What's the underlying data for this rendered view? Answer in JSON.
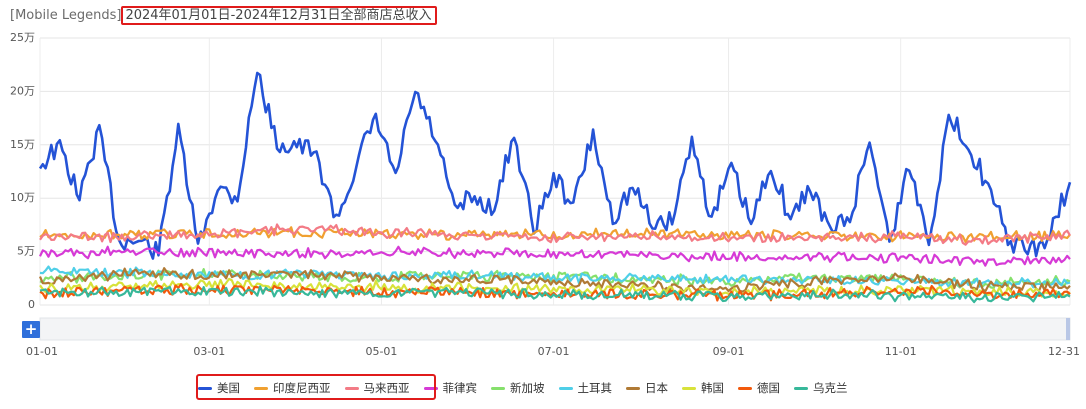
{
  "title": {
    "app": "[Mobile Legends]",
    "text": "2024年01月01日-2024年12月31日全部商店总收入"
  },
  "zoom_button": "+",
  "colors": {
    "美国": "#2453d6",
    "印度尼西亚": "#f0a030",
    "马来西亚": "#f37b86",
    "菲律宾": "#d63ad6",
    "新加坡": "#86e06c",
    "土耳其": "#4fcfe8",
    "日本": "#b07a35",
    "韩国": "#d8e23a",
    "德国": "#f2590c",
    "乌克兰": "#37b89a"
  },
  "chart_data": {
    "type": "line",
    "x_range": [
      "2024-01-01",
      "2024-12-31"
    ],
    "x_ticks": [
      "01-01",
      "03-01",
      "05-01",
      "07-01",
      "09-01",
      "11-01",
      "12-31"
    ],
    "x_tick_dates": [
      "2024-01-01",
      "2024-03-01",
      "2024-05-01",
      "2024-07-01",
      "2024-09-01",
      "2024-11-01",
      "2024-12-31"
    ],
    "y_ticks": [
      "0",
      "5万",
      "10万",
      "15万",
      "20万",
      "25万"
    ],
    "y_tick_values": [
      0,
      50000,
      100000,
      150000,
      200000,
      250000
    ],
    "ylim": [
      0,
      250000
    ],
    "grid": true,
    "legend_position": "bottom",
    "series": [
      {
        "name": "美国",
        "x": [
          "2024-01-01",
          "2024-01-08",
          "2024-01-15",
          "2024-01-22",
          "2024-01-29",
          "2024-02-05",
          "2024-02-12",
          "2024-02-19",
          "2024-02-26",
          "2024-03-04",
          "2024-03-11",
          "2024-03-18",
          "2024-03-25",
          "2024-04-01",
          "2024-04-08",
          "2024-04-15",
          "2024-04-22",
          "2024-04-29",
          "2024-05-06",
          "2024-05-13",
          "2024-05-20",
          "2024-05-27",
          "2024-06-03",
          "2024-06-10",
          "2024-06-17",
          "2024-06-24",
          "2024-07-01",
          "2024-07-08",
          "2024-07-15",
          "2024-07-22",
          "2024-07-29",
          "2024-08-05",
          "2024-08-12",
          "2024-08-19",
          "2024-08-26",
          "2024-09-02",
          "2024-09-09",
          "2024-09-16",
          "2024-09-23",
          "2024-09-30",
          "2024-10-07",
          "2024-10-14",
          "2024-10-21",
          "2024-10-28",
          "2024-11-04",
          "2024-11-11",
          "2024-11-18",
          "2024-11-25",
          "2024-12-02",
          "2024-12-09",
          "2024-12-16",
          "2024-12-23",
          "2024-12-31"
        ],
        "values": [
          130000,
          150000,
          100000,
          165000,
          60000,
          60000,
          50000,
          165000,
          55000,
          110000,
          100000,
          220000,
          150000,
          150000,
          140000,
          80000,
          130000,
          175000,
          120000,
          200000,
          155000,
          90000,
          100000,
          90000,
          160000,
          70000,
          120000,
          95000,
          160000,
          80000,
          110000,
          75000,
          80000,
          155000,
          80000,
          130000,
          75000,
          130000,
          80000,
          110000,
          70000,
          80000,
          155000,
          60000,
          130000,
          60000,
          175000,
          150000,
          110000,
          60000,
          50000,
          60000,
          115000
        ]
      },
      {
        "name": "印度尼西亚",
        "x": [
          "2024-01-01",
          "2024-02-01",
          "2024-03-01",
          "2024-04-01",
          "2024-05-01",
          "2024-06-01",
          "2024-07-01",
          "2024-08-01",
          "2024-09-01",
          "2024-10-01",
          "2024-11-01",
          "2024-12-01",
          "2024-12-31"
        ],
        "values": [
          65000,
          66000,
          67000,
          68000,
          66000,
          65000,
          66000,
          67000,
          66000,
          65000,
          64000,
          63000,
          66000
        ]
      },
      {
        "name": "马来西亚",
        "x": [
          "2024-01-01",
          "2024-02-01",
          "2024-03-01",
          "2024-04-01",
          "2024-05-01",
          "2024-06-01",
          "2024-07-01",
          "2024-08-01",
          "2024-09-01",
          "2024-10-01",
          "2024-11-01",
          "2024-12-01",
          "2024-12-31"
        ],
        "values": [
          63000,
          64000,
          66000,
          72000,
          68000,
          65000,
          63000,
          65000,
          62000,
          63000,
          64000,
          60000,
          65000
        ]
      },
      {
        "name": "菲律宾",
        "x": [
          "2024-01-01",
          "2024-02-01",
          "2024-03-01",
          "2024-04-01",
          "2024-05-01",
          "2024-06-01",
          "2024-07-01",
          "2024-08-01",
          "2024-09-01",
          "2024-10-01",
          "2024-11-01",
          "2024-12-01",
          "2024-12-31"
        ],
        "values": [
          48000,
          50000,
          50000,
          48000,
          50000,
          49000,
          48000,
          47000,
          45000,
          45000,
          44000,
          40000,
          43000
        ]
      },
      {
        "name": "新加坡",
        "x": [
          "2024-01-01",
          "2024-02-01",
          "2024-03-01",
          "2024-04-01",
          "2024-05-01",
          "2024-06-01",
          "2024-07-01",
          "2024-08-01",
          "2024-09-01",
          "2024-10-01",
          "2024-11-01",
          "2024-12-01",
          "2024-12-31"
        ],
        "values": [
          25000,
          28000,
          30000,
          27000,
          26000,
          27000,
          26000,
          25000,
          22000,
          26000,
          25000,
          20000,
          22000
        ]
      },
      {
        "name": "土耳其",
        "x": [
          "2024-01-01",
          "2024-02-01",
          "2024-03-01",
          "2024-04-01",
          "2024-05-01",
          "2024-06-01",
          "2024-07-01",
          "2024-08-01",
          "2024-09-01",
          "2024-10-01",
          "2024-11-01",
          "2024-12-01",
          "2024-12-31"
        ],
        "values": [
          33000,
          30000,
          28000,
          28000,
          27000,
          28000,
          26000,
          25000,
          24000,
          23000,
          22000,
          20000,
          21000
        ]
      },
      {
        "name": "日本",
        "x": [
          "2024-01-01",
          "2024-02-01",
          "2024-03-01",
          "2024-04-01",
          "2024-05-01",
          "2024-06-01",
          "2024-07-01",
          "2024-08-01",
          "2024-09-01",
          "2024-10-01",
          "2024-11-01",
          "2024-12-01",
          "2024-12-31"
        ],
        "values": [
          22000,
          30000,
          28000,
          30000,
          25000,
          24000,
          22000,
          18000,
          15000,
          22000,
          25000,
          18000,
          18000
        ]
      },
      {
        "name": "韩国",
        "x": [
          "2024-01-01",
          "2024-02-01",
          "2024-03-01",
          "2024-04-01",
          "2024-05-01",
          "2024-06-01",
          "2024-07-01",
          "2024-08-01",
          "2024-09-01",
          "2024-10-01",
          "2024-11-01",
          "2024-12-01",
          "2024-12-31"
        ],
        "values": [
          15000,
          18000,
          20000,
          18000,
          17000,
          16000,
          15000,
          14000,
          12000,
          13000,
          14000,
          12000,
          12000
        ]
      },
      {
        "name": "德国",
        "x": [
          "2024-01-01",
          "2024-02-01",
          "2024-03-01",
          "2024-04-01",
          "2024-05-01",
          "2024-06-01",
          "2024-07-01",
          "2024-08-01",
          "2024-09-01",
          "2024-10-01",
          "2024-11-01",
          "2024-12-01",
          "2024-12-31"
        ],
        "values": [
          10000,
          14000,
          15000,
          13000,
          12000,
          12000,
          11000,
          10000,
          9000,
          10000,
          14000,
          10000,
          10000
        ]
      },
      {
        "name": "乌克兰",
        "x": [
          "2024-01-01",
          "2024-02-01",
          "2024-03-01",
          "2024-04-01",
          "2024-05-01",
          "2024-06-01",
          "2024-07-01",
          "2024-08-01",
          "2024-09-01",
          "2024-10-01",
          "2024-11-01",
          "2024-12-01",
          "2024-12-31"
        ],
        "values": [
          12000,
          12000,
          13000,
          12000,
          11000,
          11000,
          10000,
          9000,
          8000,
          9000,
          9000,
          7000,
          8000
        ]
      }
    ]
  }
}
